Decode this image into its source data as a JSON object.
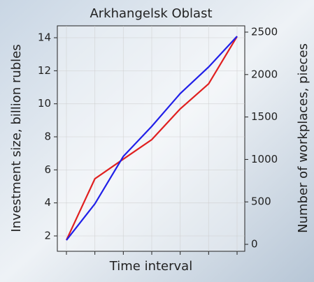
{
  "chart_data": {
    "type": "line",
    "title": "Arkhangelsk Oblast",
    "x_label": "Time interval",
    "y_label": "Investment size, billion rubles",
    "y2_label": "Number of workplaces, pieces",
    "categories": [
      null,
      null,
      null,
      null,
      null,
      null,
      null
    ],
    "ylim": [
      1.07,
      14.72
    ],
    "yticks": [
      2,
      4,
      6,
      8,
      10,
      12,
      14
    ],
    "y2lim": [
      -82,
      2574
    ],
    "y2ticks": [
      0,
      500,
      1000,
      1500,
      2000,
      2500
    ],
    "grid": true,
    "series": [
      {
        "color": "#e02020",
        "values": [
          1.75,
          5.46,
          6.65,
          7.83,
          9.69,
          11.21,
          14.08
        ]
      },
      {
        "color": "#2020e8",
        "axis": "y2",
        "values": [
          49,
          477,
          1036,
          1390,
          1776,
          2089,
          2451
        ]
      }
    ]
  }
}
